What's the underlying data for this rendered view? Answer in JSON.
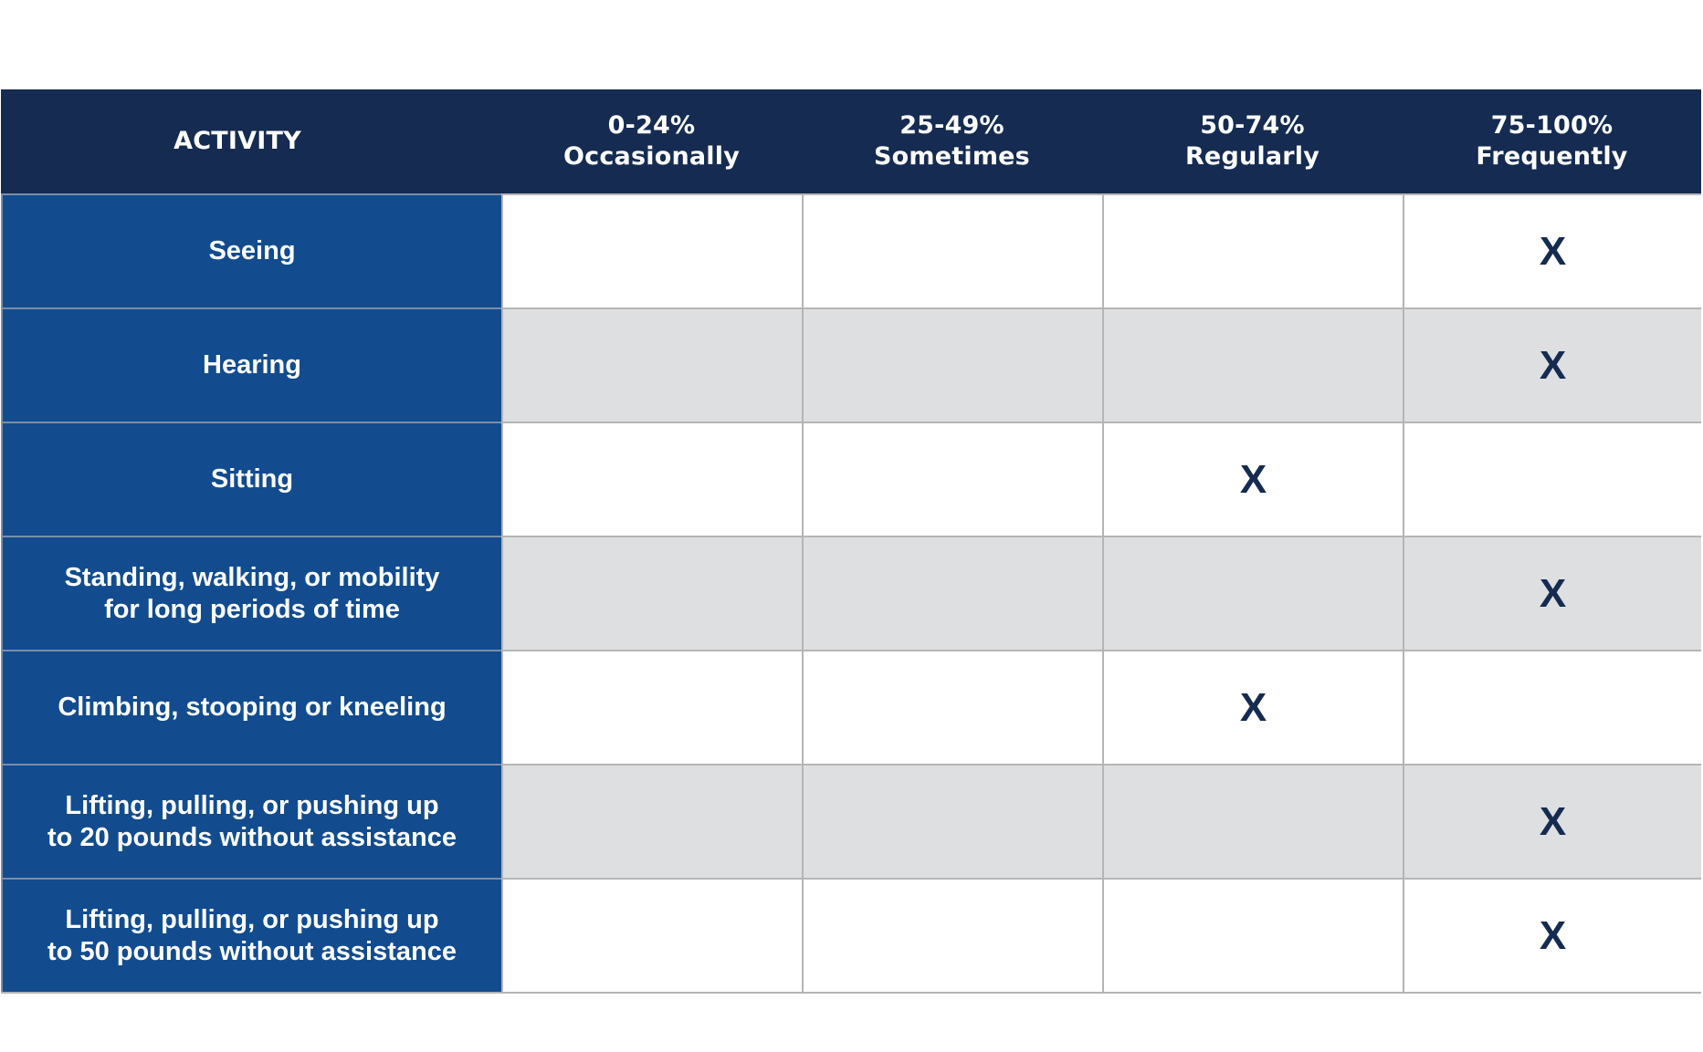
{
  "table": {
    "headers": [
      "ACTIVITY",
      "0-24%\nOccasionally",
      "25-49%\nSometimes",
      "50-74%\nRegularly",
      "75-100%\nFrequently"
    ],
    "rows": [
      {
        "activity": "Seeing",
        "marks": [
          "",
          "",
          "",
          "X"
        ]
      },
      {
        "activity": "Hearing",
        "marks": [
          "",
          "",
          "",
          "X"
        ]
      },
      {
        "activity": "Sitting",
        "marks": [
          "",
          "",
          "X",
          ""
        ]
      },
      {
        "activity": "Standing, walking, or mobility\nfor long periods of time",
        "marks": [
          "",
          "",
          "",
          "X"
        ]
      },
      {
        "activity": "Climbing, stooping or kneeling",
        "marks": [
          "",
          "",
          "X",
          ""
        ]
      },
      {
        "activity": "Lifting, pulling, or pushing up\nto 20 pounds without assistance",
        "marks": [
          "",
          "",
          "",
          "X"
        ]
      },
      {
        "activity": "Lifting, pulling, or pushing up\nto 50 pounds without assistance",
        "marks": [
          "",
          "",
          "",
          "X"
        ]
      }
    ]
  },
  "colors": {
    "header_bg": "#152b51",
    "activity_bg": "#124c8f",
    "alt_row_bg": "#dedfe1",
    "mark_color": "#152b51"
  }
}
